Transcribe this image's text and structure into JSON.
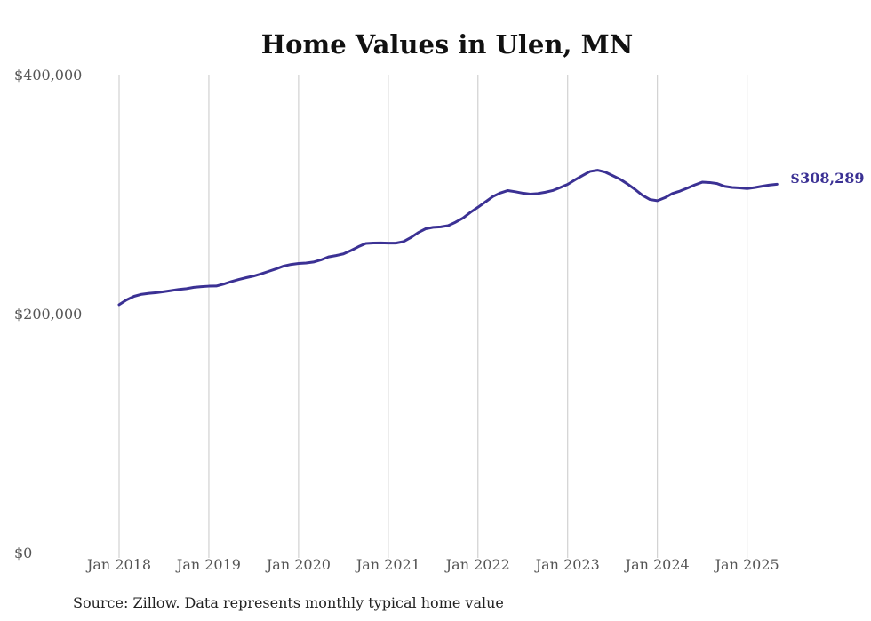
{
  "chart_data": {
    "type": "line",
    "title": "Home Values in Ulen, MN",
    "xlabel": "",
    "ylabel": "",
    "source": "Source: Zillow. Data represents monthly typical home value",
    "ylim": [
      0,
      400000
    ],
    "y_ticks": [
      {
        "value": 0,
        "label": "$0"
      },
      {
        "value": 200000,
        "label": "$200,000"
      },
      {
        "value": 400000,
        "label": "$400,000"
      }
    ],
    "x_ticks": [
      {
        "value": "2018-01",
        "label": "Jan 2018"
      },
      {
        "value": "2019-01",
        "label": "Jan 2019"
      },
      {
        "value": "2020-01",
        "label": "Jan 2020"
      },
      {
        "value": "2021-01",
        "label": "Jan 2021"
      },
      {
        "value": "2022-01",
        "label": "Jan 2022"
      },
      {
        "value": "2023-01",
        "label": "Jan 2023"
      },
      {
        "value": "2024-01",
        "label": "Jan 2024"
      },
      {
        "value": "2025-01",
        "label": "Jan 2025"
      }
    ],
    "grid": "vertical",
    "line_color": "#3b3194",
    "end_label": "$308,289",
    "series": [
      {
        "x": [
          "2018-01",
          "2018-02",
          "2018-03",
          "2018-04",
          "2018-05",
          "2018-06",
          "2018-07",
          "2018-08",
          "2018-09",
          "2018-10",
          "2018-11",
          "2018-12",
          "2019-01",
          "2019-02",
          "2019-03",
          "2019-04",
          "2019-05",
          "2019-06",
          "2019-07",
          "2019-08",
          "2019-09",
          "2019-10",
          "2019-11",
          "2019-12",
          "2020-01",
          "2020-02",
          "2020-03",
          "2020-04",
          "2020-05",
          "2020-06",
          "2020-07",
          "2020-08",
          "2020-09",
          "2020-10",
          "2020-11",
          "2020-12",
          "2021-01",
          "2021-02",
          "2021-03",
          "2021-04",
          "2021-05",
          "2021-06",
          "2021-07",
          "2021-08",
          "2021-09",
          "2021-10",
          "2021-11",
          "2021-12",
          "2022-01",
          "2022-02",
          "2022-03",
          "2022-04",
          "2022-05",
          "2022-06",
          "2022-07",
          "2022-08",
          "2022-09",
          "2022-10",
          "2022-11",
          "2022-12",
          "2023-01",
          "2023-02",
          "2023-03",
          "2023-04",
          "2023-05",
          "2023-06",
          "2023-07",
          "2023-08",
          "2023-09",
          "2023-10",
          "2023-11",
          "2023-12",
          "2024-01",
          "2024-02",
          "2024-03",
          "2024-04",
          "2024-05",
          "2024-06",
          "2024-07",
          "2024-08",
          "2024-09",
          "2024-10",
          "2024-11",
          "2024-12",
          "2025-01",
          "2025-02",
          "2025-03",
          "2025-04",
          "2025-05"
        ],
        "values": [
          207500,
          211500,
          214500,
          216200,
          217000,
          217600,
          218400,
          219300,
          220300,
          220900,
          222000,
          222600,
          223000,
          223100,
          224800,
          226800,
          228600,
          230100,
          231500,
          233300,
          235400,
          237500,
          239800,
          241200,
          242000,
          242400,
          243200,
          245000,
          247500,
          248600,
          250000,
          252800,
          256000,
          258700,
          259100,
          259200,
          259000,
          259000,
          260200,
          263600,
          267800,
          271000,
          272200,
          272600,
          273600,
          276500,
          280000,
          284800,
          289000,
          293500,
          298000,
          301000,
          303000,
          302000,
          300800,
          300000,
          300500,
          301600,
          303000,
          305500,
          308200,
          312000,
          315600,
          319000,
          320000,
          318500,
          315500,
          312500,
          308500,
          304000,
          299000,
          295500,
          294500,
          297000,
          300500,
          302500,
          305000,
          307700,
          310000,
          309700,
          308800,
          306500,
          305600,
          305200,
          304600,
          305500,
          306600,
          307600,
          308289
        ]
      }
    ]
  }
}
